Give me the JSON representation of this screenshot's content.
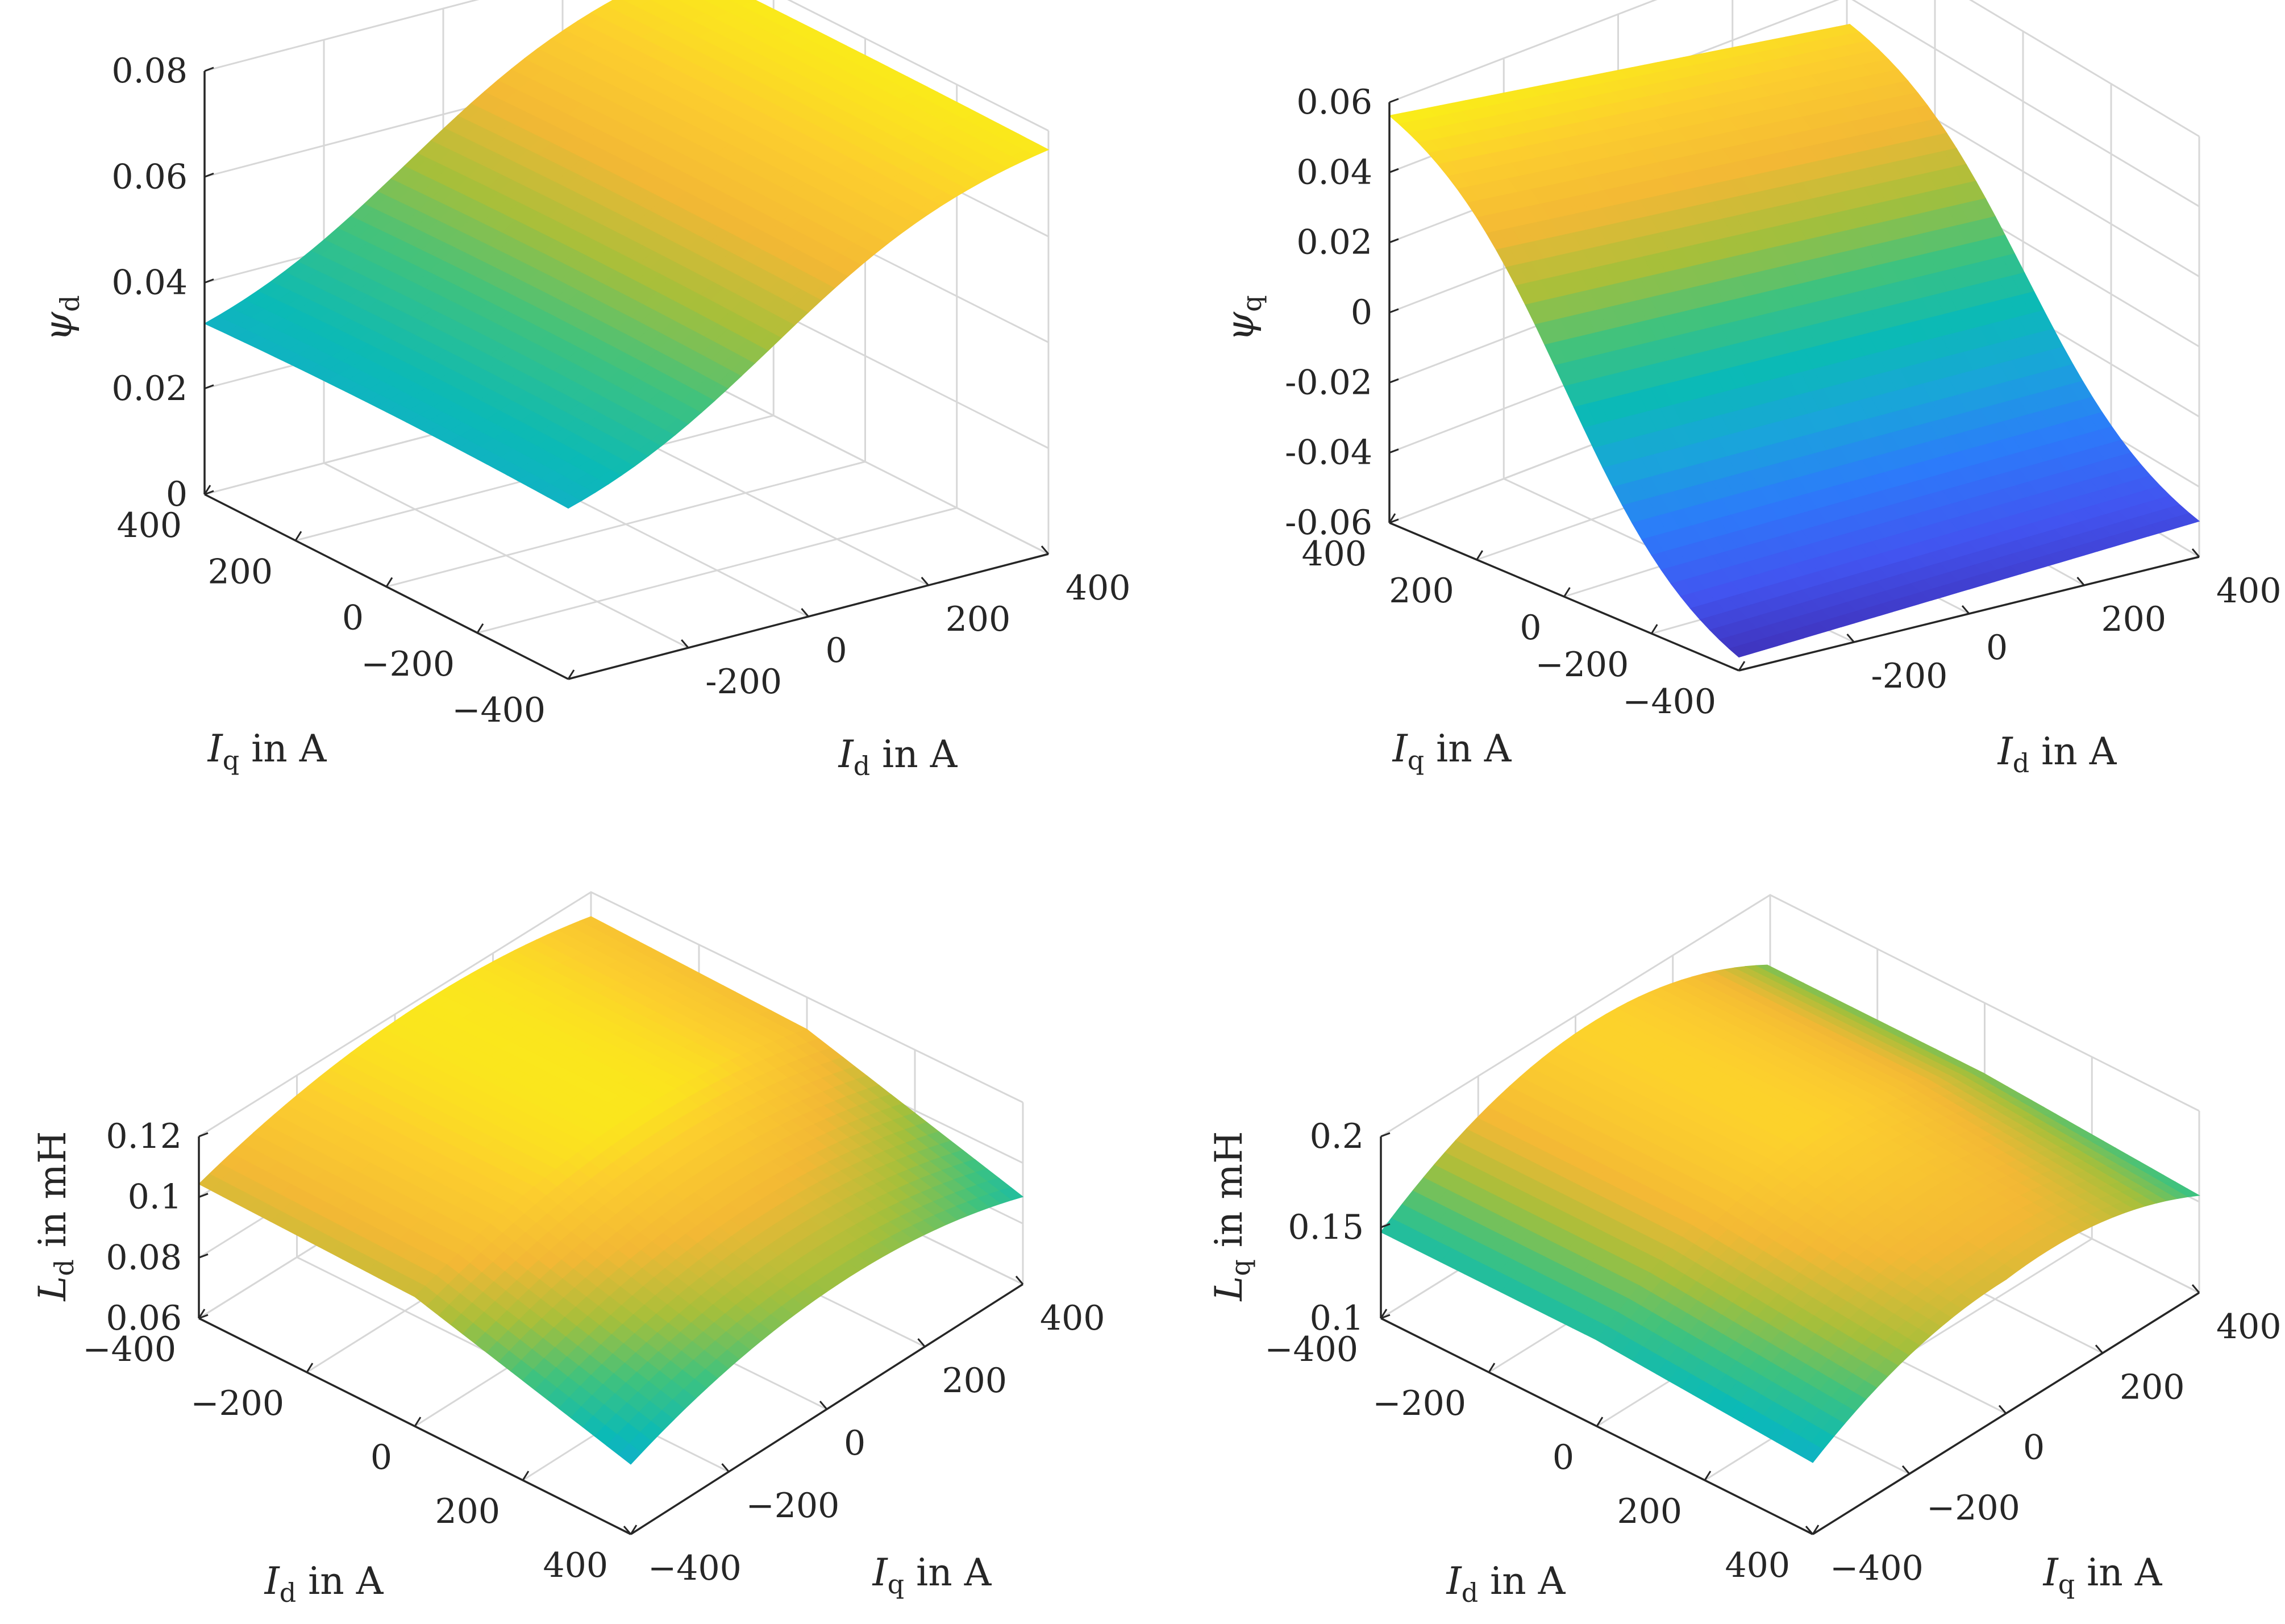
{
  "colors": {
    "colormap": "parula",
    "parula_stops": [
      "#3e26a8",
      "#4254f0",
      "#2c7bfa",
      "#1aa4db",
      "#0bbab6",
      "#3fc27e",
      "#a7bf3a",
      "#f3b835",
      "#fcce2e",
      "#f9fb0e"
    ],
    "grid": "#d7d7d7",
    "axis": "#262626"
  },
  "chart_data": [
    {
      "type": "surface",
      "x_label": "I_d in A",
      "x_label_text": {
        "sym": "I",
        "sub": "d",
        "unit": " in A"
      },
      "y_label_text": {
        "sym": "I",
        "sub": "q",
        "unit": " in A"
      },
      "z_label_text": {
        "sym": "ψ",
        "sub": "d",
        "unit": ""
      },
      "x_ticks": [
        "-200",
        "0",
        "200",
        "400"
      ],
      "y_ticks": [
        "400",
        "200",
        "0",
        "−200",
        "−400"
      ],
      "z_ticks": [
        "0",
        "0.02",
        "0.04",
        "0.06",
        "0.08"
      ],
      "xlim": [
        -400,
        400
      ],
      "ylim": [
        -400,
        400
      ],
      "zlim": [
        0,
        0.09
      ],
      "surface_model": "psi_d",
      "sample_values": {
        "x": [
          -400,
          -200,
          0,
          200,
          400
        ],
        "y": [
          0
        ],
        "z": [
          0.004,
          0.029,
          0.052,
          0.07,
          0.085
        ]
      }
    },
    {
      "type": "surface",
      "x_label_text": {
        "sym": "I",
        "sub": "d",
        "unit": " in A"
      },
      "y_label_text": {
        "sym": "I",
        "sub": "q",
        "unit": " in A"
      },
      "z_label_text": {
        "sym": "ψ",
        "sub": "q",
        "unit": ""
      },
      "x_ticks": [
        "-200",
        "0",
        "200",
        "400"
      ],
      "y_ticks": [
        "400",
        "200",
        "0",
        "−200",
        "−400"
      ],
      "z_ticks": [
        "-0.06",
        "-0.04",
        "-0.02",
        "0",
        "0.02",
        "0.04",
        "0.06"
      ],
      "xlim": [
        -400,
        400
      ],
      "ylim": [
        -400,
        400
      ],
      "zlim": [
        -0.065,
        0.065
      ],
      "surface_model": "psi_q",
      "sample_values": {
        "x": [
          0
        ],
        "y": [
          -400,
          -200,
          0,
          200,
          400
        ],
        "z": [
          -0.058,
          -0.034,
          0.0,
          0.034,
          0.058
        ]
      }
    },
    {
      "type": "surface",
      "x_label_text": {
        "sym": "I",
        "sub": "q",
        "unit": " in A"
      },
      "y_label_text": {
        "sym": "I",
        "sub": "d",
        "unit": " in A"
      },
      "z_label_text": {
        "sym": "L",
        "sub": "d",
        "unit": " in mH"
      },
      "x_ticks": [
        "−400",
        "−200",
        "0",
        "200",
        "400"
      ],
      "y_ticks": [
        "−400",
        "−200",
        "0",
        "200",
        "400"
      ],
      "z_ticks": [
        "0.06",
        "0.08",
        "0.1",
        "0.12"
      ],
      "xlim": [
        -400,
        400
      ],
      "ylim": [
        -400,
        400
      ],
      "zlim": [
        0.06,
        0.12
      ],
      "surface_model": "L_d",
      "sample_values": {
        "x": [
          -400,
          0,
          400
        ],
        "y": [
          -400,
          0,
          400
        ],
        "z": [
          0.095,
          0.118,
          0.07
        ]
      }
    },
    {
      "type": "surface",
      "x_label_text": {
        "sym": "I",
        "sub": "q",
        "unit": " in A"
      },
      "y_label_text": {
        "sym": "I",
        "sub": "d",
        "unit": " in A"
      },
      "z_label_text": {
        "sym": "L",
        "sub": "q",
        "unit": " in mH"
      },
      "x_ticks": [
        "−400",
        "−200",
        "0",
        "200",
        "400"
      ],
      "y_ticks": [
        "−400",
        "−200",
        "0",
        "200",
        "400"
      ],
      "z_ticks": [
        "0.1",
        "0.15",
        "0.2"
      ],
      "xlim": [
        -400,
        400
      ],
      "ylim": [
        -400,
        400
      ],
      "zlim": [
        0.1,
        0.2
      ],
      "surface_model": "L_q",
      "sample_values": {
        "x": [
          -400,
          0,
          400
        ],
        "y": [
          -400,
          0,
          400
        ],
        "z": [
          0.13,
          0.19,
          0.105
        ]
      }
    }
  ]
}
